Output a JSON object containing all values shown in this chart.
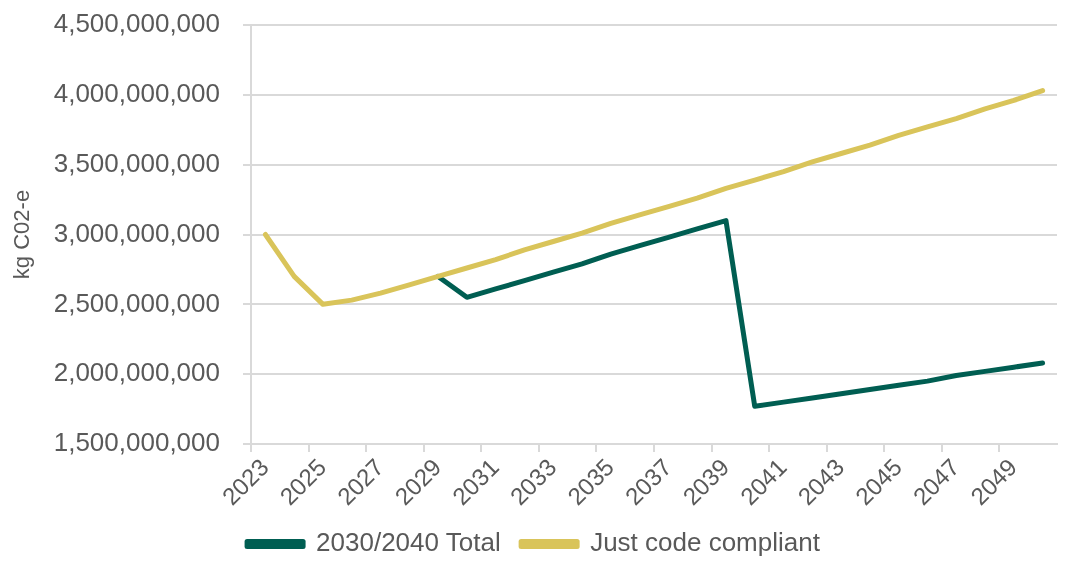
{
  "chart_data": {
    "type": "line",
    "ylabel": "kg C02-e",
    "categories": [
      "2023",
      null,
      "2025",
      null,
      "2027",
      null,
      "2029",
      null,
      "2031",
      null,
      "2033",
      null,
      "2035",
      null,
      "2037",
      null,
      "2039",
      null,
      "2041",
      null,
      "2043",
      null,
      "2045",
      null,
      "2047",
      null,
      "2049",
      null
    ],
    "series": [
      {
        "name": "2030/2040 Total",
        "color": "#005e52",
        "values": [
          null,
          null,
          null,
          null,
          null,
          null,
          2700000000,
          2550000000,
          2610000000,
          2670000000,
          2730000000,
          2790000000,
          2860000000,
          2920000000,
          2980000000,
          3040000000,
          3100000000,
          1770000000,
          1800000000,
          1830000000,
          1860000000,
          1890000000,
          1920000000,
          1950000000,
          1990000000,
          2020000000,
          2050000000,
          2080000000
        ]
      },
      {
        "name": "Just code compliant",
        "color": "#d9c45a",
        "values": [
          3000000000,
          2700000000,
          2500000000,
          2530000000,
          2580000000,
          2640000000,
          2700000000,
          2760000000,
          2820000000,
          2890000000,
          2950000000,
          3010000000,
          3080000000,
          3140000000,
          3200000000,
          3260000000,
          3330000000,
          3390000000,
          3450000000,
          3520000000,
          3580000000,
          3640000000,
          3710000000,
          3770000000,
          3830000000,
          3900000000,
          3960000000,
          4030000000
        ]
      }
    ],
    "ylim": [
      1500000000,
      4500000000
    ],
    "yticks": [
      {
        "value": 1500000000,
        "label": "1,500,000,000"
      },
      {
        "value": 2000000000,
        "label": "2,000,000,000"
      },
      {
        "value": 2500000000,
        "label": "2,500,000,000"
      },
      {
        "value": 3000000000,
        "label": "3,000,000,000"
      },
      {
        "value": 3500000000,
        "label": "3,500,000,000"
      },
      {
        "value": 4000000000,
        "label": "4,000,000,000"
      },
      {
        "value": 4500000000,
        "label": "4,500,000,000"
      }
    ],
    "grid": "y",
    "legend": "bottom",
    "marker": "none",
    "line_style": "solid"
  }
}
